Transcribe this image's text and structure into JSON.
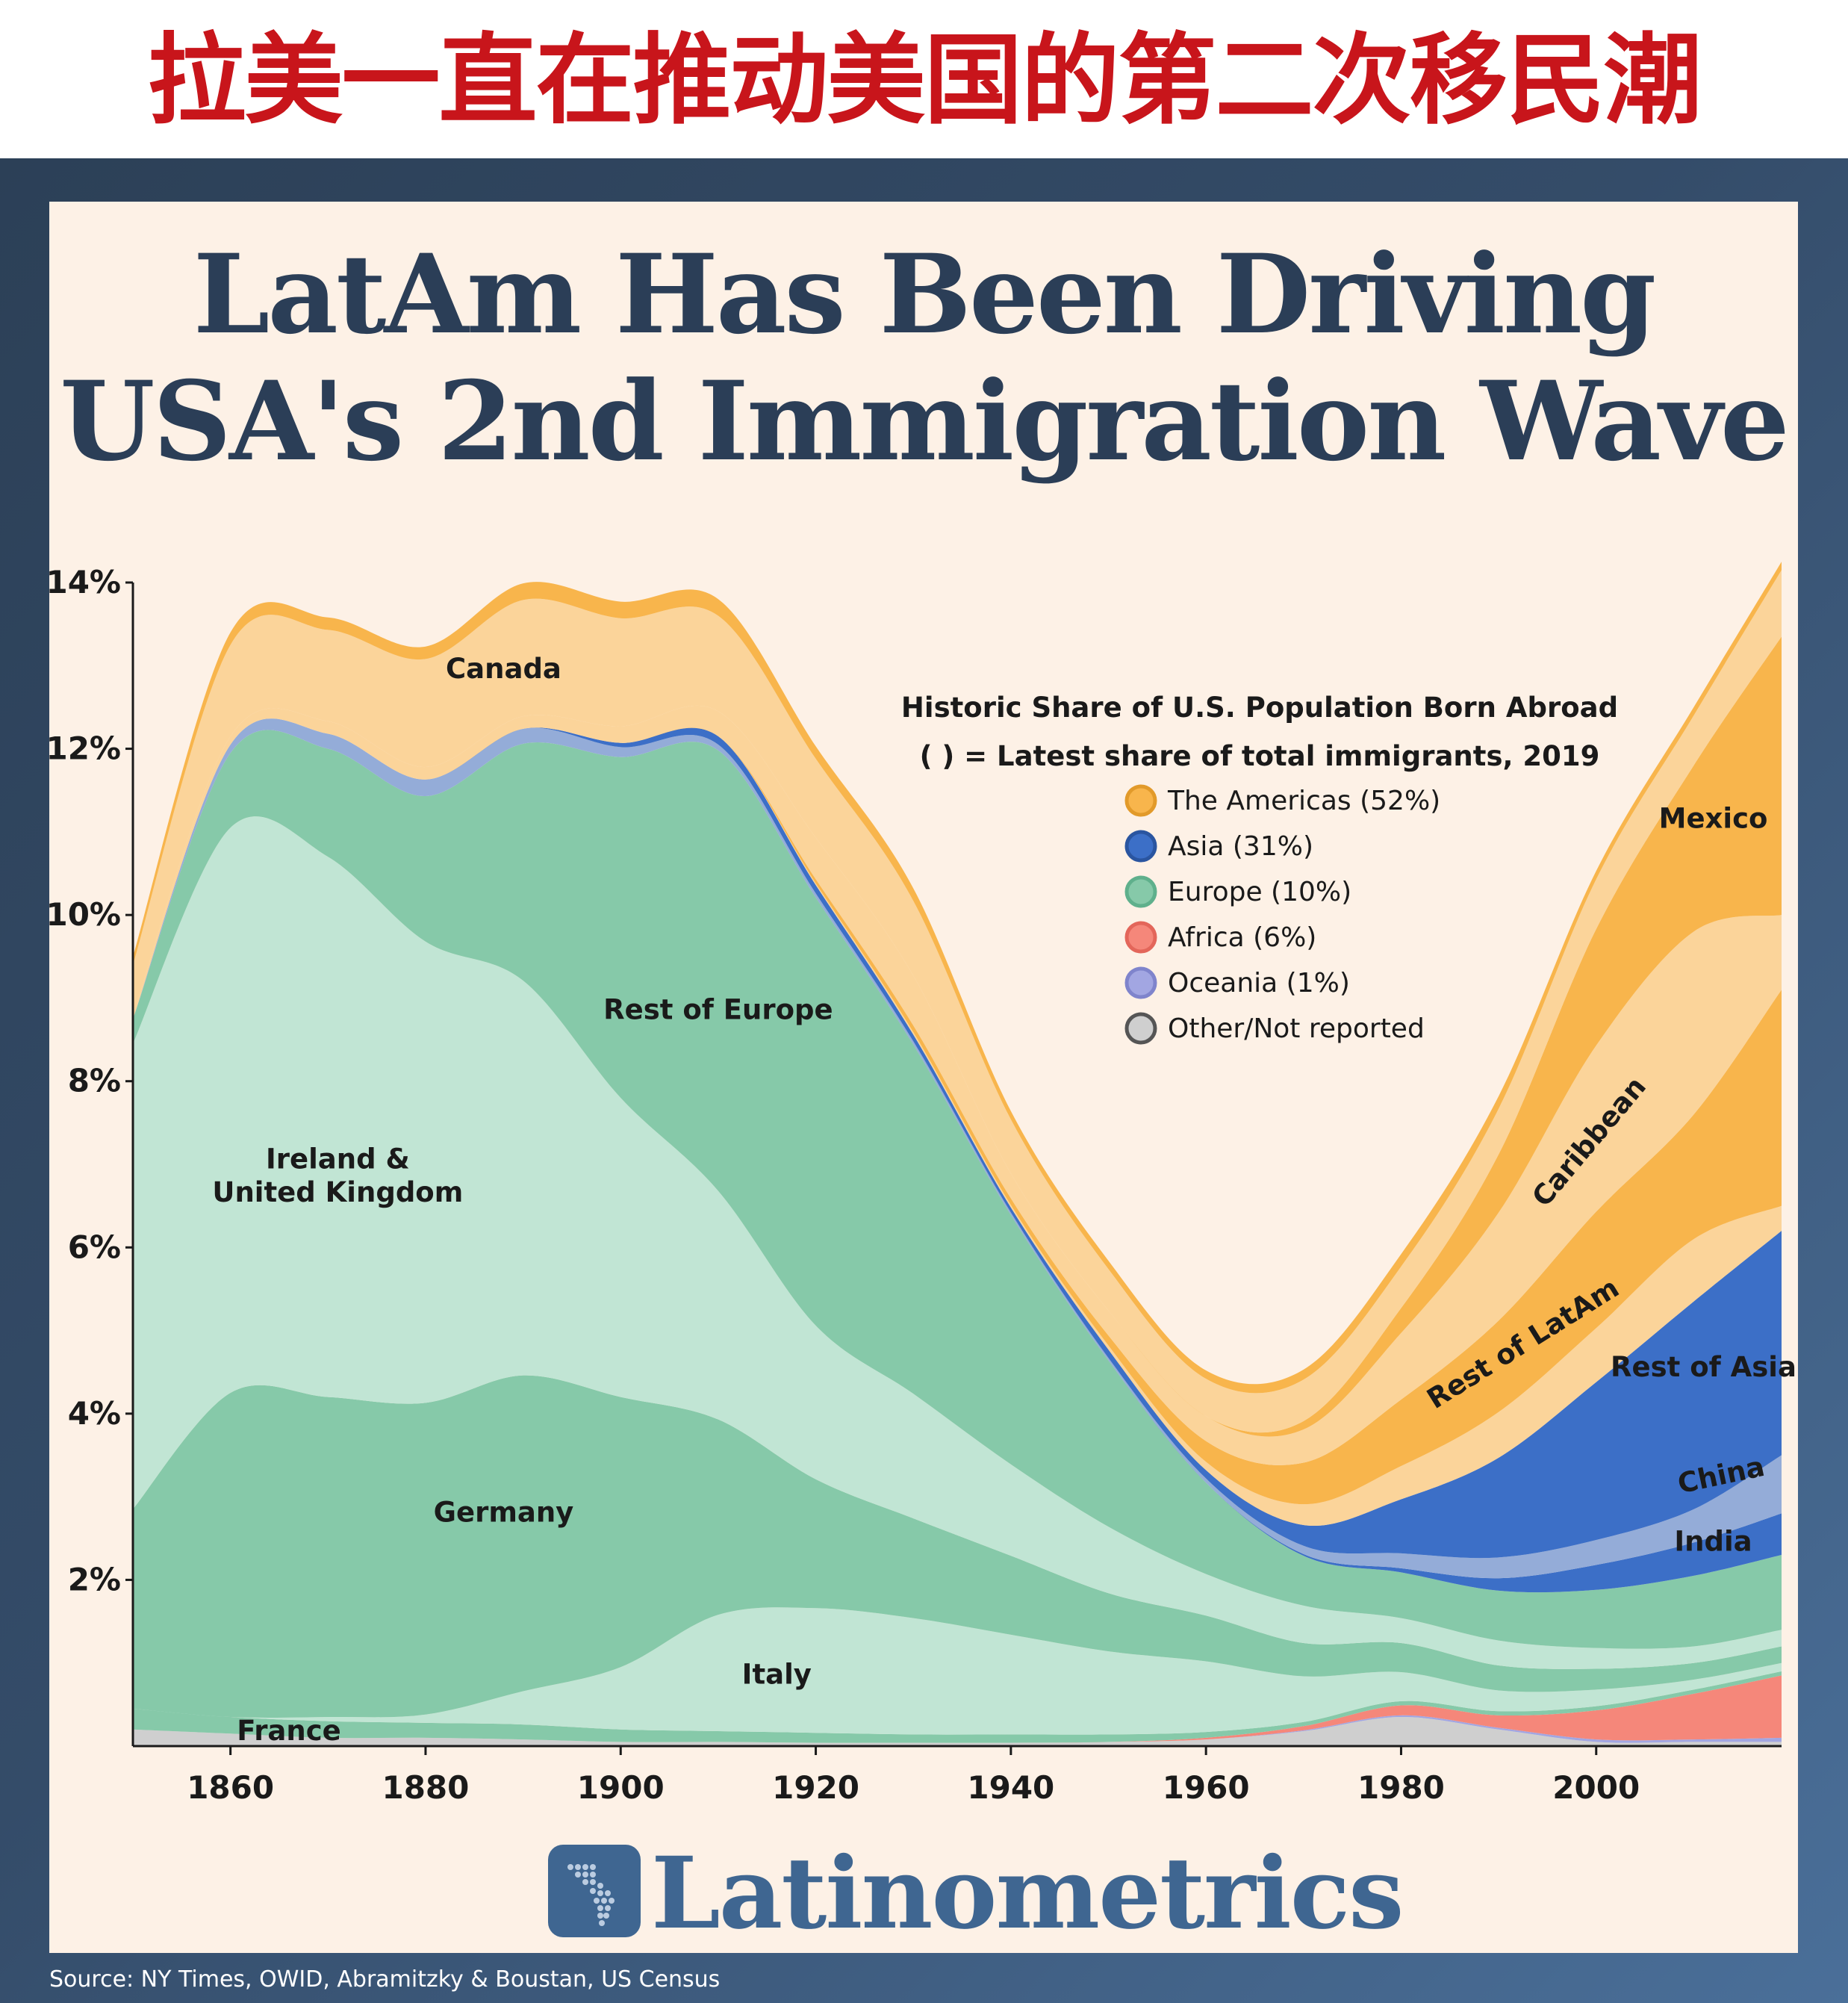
{
  "banner": {
    "title_cn": "拉美一直在推动美国的第二次移民潮"
  },
  "title": {
    "line1": "LatAm Has Been Driving",
    "line2": "USA's 2nd Immigration Wave"
  },
  "brand": {
    "name": "Latinometrics"
  },
  "source": "Source: NY Times, OWID, Abramitzky & Boustan, US Census",
  "colors": {
    "banner_red": "#c8151b",
    "title_navy": "#2b3e57",
    "panel": "#fdf1e6",
    "frame": "#344c69",
    "americas_dark": "#f8b54c",
    "americas_light": "#fbd49a",
    "asia": "#3c6fc7",
    "asia_light": "#94acd8",
    "europe_dark": "#86c9a9",
    "europe_light": "#c1e5d4",
    "africa": "#f5877a",
    "oceania": "#a2a6e2",
    "other": "#cfcfcf"
  },
  "chart_data": {
    "type": "area",
    "stacked": true,
    "title": "Historic Share of U.S. Population Born Abroad",
    "subtitle": "( ) = Latest share of total immigrants, 2019",
    "xlabel": "",
    "ylabel": "",
    "xlim": [
      1850,
      2019
    ],
    "ylim": [
      0,
      14
    ],
    "x_ticks": [
      "1860",
      "1880",
      "1900",
      "1920",
      "1940",
      "1960",
      "1980",
      "2000"
    ],
    "y_ticks": [
      "2%",
      "4%",
      "6%",
      "8%",
      "10%",
      "12%",
      "14%"
    ],
    "x": [
      1850,
      1860,
      1870,
      1880,
      1890,
      1900,
      1910,
      1920,
      1930,
      1940,
      1950,
      1960,
      1970,
      1980,
      1990,
      2000,
      2010,
      2019
    ],
    "legend": [
      {
        "label": "The Americas (52%)",
        "color": "#f8b54c"
      },
      {
        "label": "Asia (31%)",
        "color": "#3c6fc7"
      },
      {
        "label": "Europe (10%)",
        "color": "#86c9a9"
      },
      {
        "label": "Africa (6%)",
        "color": "#f5877a"
      },
      {
        "label": "Oceania (1%)",
        "color": "#a2a6e2"
      },
      {
        "label": "Other/Not reported",
        "color": "#cfcfcf"
      }
    ],
    "series": [
      {
        "name": "Other/Not reported",
        "group": "Other",
        "color": "#cfcfcf",
        "values": [
          0.2,
          0.15,
          0.1,
          0.1,
          0.08,
          0.05,
          0.05,
          0.04,
          0.04,
          0.04,
          0.05,
          0.08,
          0.18,
          0.35,
          0.2,
          0.05,
          0.05,
          0.05
        ]
      },
      {
        "name": "Oceania",
        "group": "Oceania",
        "color": "#a2a6e2",
        "values": [
          0,
          0,
          0,
          0,
          0,
          0,
          0,
          0,
          0,
          0,
          0,
          0,
          0.01,
          0.02,
          0.02,
          0.03,
          0.03,
          0.05
        ]
      },
      {
        "name": "Africa",
        "group": "Africa",
        "color": "#f5877a",
        "values": [
          0,
          0,
          0,
          0,
          0,
          0,
          0,
          0,
          0,
          0,
          0,
          0.02,
          0.05,
          0.12,
          0.15,
          0.35,
          0.55,
          0.75
        ]
      },
      {
        "name": "France",
        "group": "Europe",
        "color": "#86c9a9",
        "values": [
          0.25,
          0.2,
          0.2,
          0.18,
          0.18,
          0.15,
          0.13,
          0.12,
          0.1,
          0.1,
          0.09,
          0.07,
          0.05,
          0.05,
          0.05,
          0.05,
          0.05,
          0.05
        ]
      },
      {
        "name": "Italy",
        "group": "Europe",
        "color": "#c1e5d4",
        "values": [
          0,
          0,
          0.05,
          0.1,
          0.4,
          0.75,
          1.4,
          1.5,
          1.4,
          1.2,
          1.0,
          0.85,
          0.55,
          0.35,
          0.25,
          0.2,
          0.12,
          0.1
        ]
      },
      {
        "name": "Germany",
        "group": "Europe",
        "color": "#86c9a9",
        "values": [
          2.4,
          3.9,
          3.85,
          3.75,
          3.8,
          3.25,
          2.35,
          1.55,
          1.2,
          0.95,
          0.7,
          0.55,
          0.4,
          0.35,
          0.3,
          0.25,
          0.2,
          0.2
        ]
      },
      {
        "name": "Ireland & United Kingdom",
        "group": "Europe",
        "color": "#c1e5d4",
        "values": [
          5.6,
          6.8,
          6.5,
          5.55,
          4.75,
          3.6,
          2.75,
          1.85,
          1.5,
          1.1,
          0.8,
          0.5,
          0.45,
          0.3,
          0.3,
          0.25,
          0.2,
          0.2
        ]
      },
      {
        "name": "Rest of Europe",
        "group": "Europe",
        "color": "#86c9a9",
        "values": [
          0.3,
          0.9,
          1.3,
          1.75,
          2.85,
          4.1,
          5.3,
          5.15,
          4.2,
          3.0,
          2.0,
          1.1,
          0.6,
          0.55,
          0.6,
          0.7,
          0.85,
          0.9
        ]
      },
      {
        "name": "India",
        "group": "Asia",
        "color": "#3c6fc7",
        "values": [
          0,
          0,
          0,
          0,
          0,
          0,
          0,
          0,
          0,
          0,
          0,
          0,
          0.02,
          0.05,
          0.15,
          0.3,
          0.4,
          0.5
        ]
      },
      {
        "name": "China",
        "group": "Asia",
        "color": "#94acd8",
        "values": [
          0,
          0.1,
          0.18,
          0.2,
          0.18,
          0.12,
          0.07,
          0.05,
          0.04,
          0.03,
          0.03,
          0.05,
          0.1,
          0.18,
          0.25,
          0.3,
          0.4,
          0.7
        ]
      },
      {
        "name": "Rest of Asia",
        "group": "Asia",
        "color": "#3c6fc7",
        "values": [
          0,
          0,
          0,
          0,
          0,
          0.05,
          0.1,
          0.1,
          0.08,
          0.06,
          0.1,
          0.1,
          0.25,
          0.65,
          1.2,
          1.9,
          2.5,
          2.7
        ]
      },
      {
        "name": "Rest of LatAm",
        "group": "The Americas",
        "color": "#fbd49a",
        "values": [
          0,
          0,
          0,
          0,
          0,
          0,
          0,
          0.02,
          0.03,
          0.03,
          0.05,
          0.1,
          0.25,
          0.4,
          0.55,
          0.65,
          0.75,
          0.3
        ]
      },
      {
        "name": "Caribbean",
        "group": "The Americas",
        "color": "#f8b54c",
        "values": [
          0,
          0,
          0,
          0,
          0,
          0,
          0,
          0.05,
          0.08,
          0.08,
          0.12,
          0.25,
          0.5,
          0.8,
          1.1,
          1.4,
          1.5,
          2.6
        ]
      },
      {
        "name": "Mexico",
        "group": "The Americas",
        "color": "#fbd49a",
        "values": [
          0.05,
          0.1,
          0.15,
          0.15,
          0.15,
          0.2,
          0.3,
          0.5,
          0.6,
          0.3,
          0.3,
          0.3,
          0.4,
          0.8,
          1.3,
          2.0,
          2.2,
          0.9
        ]
      },
      {
        "name": "Mexico (upper)",
        "group": "The Americas",
        "color": "#f8b54c",
        "values": [
          0,
          0,
          0,
          0,
          0,
          0,
          0,
          0,
          0,
          0,
          0,
          0,
          0.1,
          0.3,
          0.7,
          1.4,
          2.0,
          3.35
        ]
      },
      {
        "name": "Canada",
        "group": "The Americas",
        "color": "#fbd49a",
        "values": [
          0.6,
          1.1,
          1.1,
          1.3,
          1.4,
          1.3,
          1.15,
          0.95,
          0.9,
          0.65,
          0.5,
          0.45,
          0.5,
          0.5,
          0.55,
          0.6,
          0.6,
          0.8
        ]
      },
      {
        "name": "Canada (upper)",
        "group": "The Americas",
        "color": "#f8b54c",
        "values": [
          0.1,
          0.15,
          0.15,
          0.15,
          0.2,
          0.2,
          0.2,
          0.15,
          0.15,
          0.1,
          0.1,
          0.1,
          0.12,
          0.15,
          0.15,
          0.1,
          0.1,
          0.1
        ]
      }
    ],
    "annotations": [
      {
        "text": "Canada",
        "x": 1888,
        "y": 12.85,
        "rotate": 0
      },
      {
        "text": "Rest of Europe",
        "x": 1910,
        "y": 8.75,
        "rotate": 0
      },
      {
        "text": "Ireland &",
        "x": 1871,
        "y": 6.95,
        "rotate": 0
      },
      {
        "text": "United Kingdom",
        "x": 1871,
        "y": 6.55,
        "rotate": 0
      },
      {
        "text": "Germany",
        "x": 1888,
        "y": 2.7,
        "rotate": 0
      },
      {
        "text": "Italy",
        "x": 1916,
        "y": 0.75,
        "rotate": 0
      },
      {
        "text": "France",
        "x": 1866,
        "y": 0.07,
        "rotate": 0
      },
      {
        "text": "Mexico",
        "x": 2012,
        "y": 11.05,
        "rotate": 0
      },
      {
        "text": "Caribbean",
        "x": 2000,
        "y": 7.2,
        "rotate": -50
      },
      {
        "text": "Rest of LatAm",
        "x": 1993,
        "y": 4.75,
        "rotate": -32
      },
      {
        "text": "Rest of Asia",
        "x": 2011,
        "y": 4.45,
        "rotate": 0
      },
      {
        "text": "China",
        "x": 2013,
        "y": 3.15,
        "rotate": -12
      },
      {
        "text": "India",
        "x": 2012,
        "y": 2.35,
        "rotate": 0
      }
    ]
  }
}
